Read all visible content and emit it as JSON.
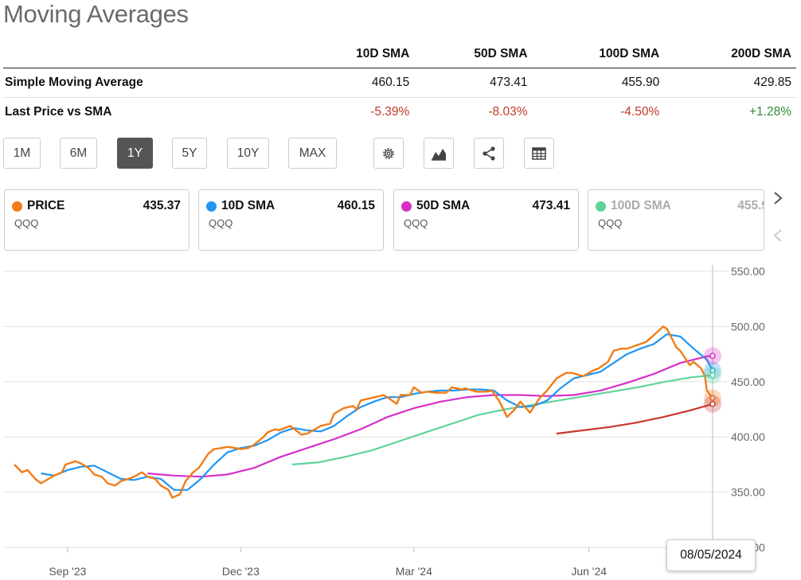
{
  "title": "Moving Averages",
  "table": {
    "headers": [
      "",
      "10D SMA",
      "50D SMA",
      "100D SMA",
      "200D SMA"
    ],
    "rows": [
      {
        "label": "Simple Moving Average",
        "values": [
          "460.15",
          "473.41",
          "455.90",
          "429.85"
        ]
      },
      {
        "label": "Last Price vs SMA",
        "values": [
          "-5.39%",
          "-8.03%",
          "-4.50%",
          "+1.28%"
        ]
      }
    ]
  },
  "ranges": [
    "1M",
    "6M",
    "1Y",
    "5Y",
    "10Y",
    "MAX"
  ],
  "active_range": "1Y",
  "tools": [
    "gear-icon",
    "chart-type-icon",
    "share-icon",
    "table-icon"
  ],
  "cards": [
    {
      "name": "PRICE",
      "value": "435.37",
      "ticker": "QQQ",
      "color": "#f07d18"
    },
    {
      "name": "10D SMA",
      "value": "460.15",
      "ticker": "QQQ",
      "color": "#2196f3"
    },
    {
      "name": "50D SMA",
      "value": "473.41",
      "ticker": "QQQ",
      "color": "#d630c8"
    },
    {
      "name": "100D SMA",
      "value": "455.9",
      "ticker": "QQQ",
      "color": "#5fd49a"
    }
  ],
  "tooltip": "08/05/2024",
  "chart_data": {
    "type": "line",
    "ylim": [
      300,
      550
    ],
    "yticks": [
      "550.00",
      "500.00",
      "450.00",
      "400.00",
      "350.00",
      "300.00"
    ],
    "xticks": [
      {
        "label": "Sep '23",
        "date": "2023-09-01"
      },
      {
        "label": "Dec '23",
        "date": "2023-12-01"
      },
      {
        "label": "Mar '24",
        "date": "2024-03-01"
      },
      {
        "label": "Jun '24",
        "date": "2024-06-01"
      }
    ],
    "x_range": [
      "2023-08-04",
      "2024-08-05"
    ],
    "series": [
      {
        "name": "PRICE",
        "color": "#f07d18",
        "points": [
          [
            "2023-08-04",
            375
          ],
          [
            "2023-08-08",
            368
          ],
          [
            "2023-08-11",
            370
          ],
          [
            "2023-08-15",
            362
          ],
          [
            "2023-08-18",
            358
          ],
          [
            "2023-08-22",
            362
          ],
          [
            "2023-08-25",
            365
          ],
          [
            "2023-08-29",
            368
          ],
          [
            "2023-08-31",
            375
          ],
          [
            "2023-09-05",
            378
          ],
          [
            "2023-09-08",
            376
          ],
          [
            "2023-09-12",
            372
          ],
          [
            "2023-09-15",
            366
          ],
          [
            "2023-09-19",
            364
          ],
          [
            "2023-09-22",
            358
          ],
          [
            "2023-09-26",
            356
          ],
          [
            "2023-09-29",
            360
          ],
          [
            "2023-10-03",
            362
          ],
          [
            "2023-10-06",
            364
          ],
          [
            "2023-10-10",
            368
          ],
          [
            "2023-10-13",
            364
          ],
          [
            "2023-10-17",
            362
          ],
          [
            "2023-10-20",
            356
          ],
          [
            "2023-10-24",
            352
          ],
          [
            "2023-10-26",
            345
          ],
          [
            "2023-10-30",
            348
          ],
          [
            "2023-11-02",
            360
          ],
          [
            "2023-11-06",
            368
          ],
          [
            "2023-11-09",
            372
          ],
          [
            "2023-11-14",
            385
          ],
          [
            "2023-11-17",
            389
          ],
          [
            "2023-11-21",
            390
          ],
          [
            "2023-11-24",
            391
          ],
          [
            "2023-11-28",
            390
          ],
          [
            "2023-12-01",
            389
          ],
          [
            "2023-12-05",
            390
          ],
          [
            "2023-12-08",
            393
          ],
          [
            "2023-12-13",
            400
          ],
          [
            "2023-12-15",
            404
          ],
          [
            "2023-12-19",
            407
          ],
          [
            "2023-12-21",
            406
          ],
          [
            "2023-12-27",
            410
          ],
          [
            "2024-01-02",
            402
          ],
          [
            "2024-01-05",
            403
          ],
          [
            "2024-01-09",
            407
          ],
          [
            "2024-01-12",
            410
          ],
          [
            "2024-01-17",
            412
          ],
          [
            "2024-01-19",
            421
          ],
          [
            "2024-01-24",
            426
          ],
          [
            "2024-01-29",
            428
          ],
          [
            "2024-01-31",
            425
          ],
          [
            "2024-02-02",
            433
          ],
          [
            "2024-02-07",
            435
          ],
          [
            "2024-02-12",
            437
          ],
          [
            "2024-02-14",
            438
          ],
          [
            "2024-02-16",
            436
          ],
          [
            "2024-02-21",
            430
          ],
          [
            "2024-02-23",
            438
          ],
          [
            "2024-02-28",
            438
          ],
          [
            "2024-03-01",
            445
          ],
          [
            "2024-03-05",
            440
          ],
          [
            "2024-03-08",
            441
          ],
          [
            "2024-03-13",
            440
          ],
          [
            "2024-03-18",
            440
          ],
          [
            "2024-03-21",
            445
          ],
          [
            "2024-03-26",
            443
          ],
          [
            "2024-03-28",
            444
          ],
          [
            "2024-04-03",
            441
          ],
          [
            "2024-04-08",
            441
          ],
          [
            "2024-04-11",
            442
          ],
          [
            "2024-04-15",
            432
          ],
          [
            "2024-04-19",
            418
          ],
          [
            "2024-04-23",
            425
          ],
          [
            "2024-04-26",
            432
          ],
          [
            "2024-05-01",
            422
          ],
          [
            "2024-05-06",
            435
          ],
          [
            "2024-05-10",
            442
          ],
          [
            "2024-05-15",
            453
          ],
          [
            "2024-05-20",
            458
          ],
          [
            "2024-05-23",
            458
          ],
          [
            "2024-05-29",
            455
          ],
          [
            "2024-06-03",
            460
          ],
          [
            "2024-06-06",
            462
          ],
          [
            "2024-06-11",
            468
          ],
          [
            "2024-06-14",
            478
          ],
          [
            "2024-06-18",
            480
          ],
          [
            "2024-06-21",
            480
          ],
          [
            "2024-06-26",
            483
          ],
          [
            "2024-07-01",
            486
          ],
          [
            "2024-07-05",
            492
          ],
          [
            "2024-07-10",
            500
          ],
          [
            "2024-07-12",
            498
          ],
          [
            "2024-07-17",
            481
          ],
          [
            "2024-07-19",
            478
          ],
          [
            "2024-07-24",
            465
          ],
          [
            "2024-07-26",
            468
          ],
          [
            "2024-07-30",
            462
          ],
          [
            "2024-08-01",
            455
          ],
          [
            "2024-08-02",
            442
          ],
          [
            "2024-08-05",
            435.37
          ]
        ]
      },
      {
        "name": "10D SMA",
        "color": "#2196f3",
        "points": [
          [
            "2023-08-18",
            367
          ],
          [
            "2023-08-25",
            365
          ],
          [
            "2023-09-01",
            370
          ],
          [
            "2023-09-08",
            373
          ],
          [
            "2023-09-15",
            374
          ],
          [
            "2023-09-22",
            368
          ],
          [
            "2023-09-29",
            362
          ],
          [
            "2023-10-06",
            361
          ],
          [
            "2023-10-13",
            364
          ],
          [
            "2023-10-20",
            362
          ],
          [
            "2023-10-27",
            352
          ],
          [
            "2023-11-03",
            352
          ],
          [
            "2023-11-10",
            362
          ],
          [
            "2023-11-17",
            375
          ],
          [
            "2023-11-24",
            386
          ],
          [
            "2023-12-01",
            390
          ],
          [
            "2023-12-08",
            392
          ],
          [
            "2023-12-15",
            397
          ],
          [
            "2023-12-22",
            404
          ],
          [
            "2023-12-29",
            408
          ],
          [
            "2024-01-05",
            406
          ],
          [
            "2024-01-12",
            405
          ],
          [
            "2024-01-19",
            410
          ],
          [
            "2024-01-26",
            419
          ],
          [
            "2024-02-02",
            427
          ],
          [
            "2024-02-09",
            432
          ],
          [
            "2024-02-16",
            436
          ],
          [
            "2024-02-23",
            436
          ],
          [
            "2024-03-01",
            439
          ],
          [
            "2024-03-08",
            441
          ],
          [
            "2024-03-15",
            442
          ],
          [
            "2024-03-22",
            442
          ],
          [
            "2024-03-29",
            443
          ],
          [
            "2024-04-05",
            443
          ],
          [
            "2024-04-12",
            442
          ],
          [
            "2024-04-19",
            433
          ],
          [
            "2024-04-26",
            427
          ],
          [
            "2024-05-03",
            428
          ],
          [
            "2024-05-10",
            433
          ],
          [
            "2024-05-17",
            444
          ],
          [
            "2024-05-24",
            453
          ],
          [
            "2024-05-31",
            456
          ],
          [
            "2024-06-07",
            459
          ],
          [
            "2024-06-14",
            467
          ],
          [
            "2024-06-21",
            475
          ],
          [
            "2024-06-28",
            480
          ],
          [
            "2024-07-05",
            484
          ],
          [
            "2024-07-12",
            493
          ],
          [
            "2024-07-19",
            491
          ],
          [
            "2024-07-26",
            480
          ],
          [
            "2024-08-02",
            470
          ],
          [
            "2024-08-05",
            460.15
          ]
        ]
      },
      {
        "name": "50D SMA",
        "color": "#d630c8",
        "points": [
          [
            "2023-10-13",
            367
          ],
          [
            "2023-10-27",
            365
          ],
          [
            "2023-11-10",
            364
          ],
          [
            "2023-11-24",
            366
          ],
          [
            "2023-12-08",
            372
          ],
          [
            "2023-12-22",
            382
          ],
          [
            "2024-01-05",
            390
          ],
          [
            "2024-01-19",
            398
          ],
          [
            "2024-02-02",
            407
          ],
          [
            "2024-02-16",
            418
          ],
          [
            "2024-03-01",
            426
          ],
          [
            "2024-03-15",
            432
          ],
          [
            "2024-03-29",
            436
          ],
          [
            "2024-04-12",
            438
          ],
          [
            "2024-04-26",
            438
          ],
          [
            "2024-05-10",
            437
          ],
          [
            "2024-05-24",
            438
          ],
          [
            "2024-06-07",
            442
          ],
          [
            "2024-06-21",
            449
          ],
          [
            "2024-07-05",
            457
          ],
          [
            "2024-07-19",
            467
          ],
          [
            "2024-08-02",
            473
          ],
          [
            "2024-08-05",
            473.41
          ]
        ]
      },
      {
        "name": "100D SMA",
        "color": "#5fd49a",
        "points": [
          [
            "2023-12-28",
            375
          ],
          [
            "2024-01-11",
            377
          ],
          [
            "2024-01-25",
            382
          ],
          [
            "2024-02-08",
            388
          ],
          [
            "2024-02-22",
            396
          ],
          [
            "2024-03-07",
            404
          ],
          [
            "2024-03-21",
            412
          ],
          [
            "2024-04-04",
            420
          ],
          [
            "2024-04-18",
            425
          ],
          [
            "2024-05-02",
            429
          ],
          [
            "2024-05-16",
            433
          ],
          [
            "2024-05-30",
            437
          ],
          [
            "2024-06-13",
            441
          ],
          [
            "2024-06-27",
            445
          ],
          [
            "2024-07-11",
            450
          ],
          [
            "2024-07-25",
            454
          ],
          [
            "2024-08-05",
            455.9
          ]
        ]
      },
      {
        "name": "200D SMA",
        "color": "#c9372c",
        "points": [
          [
            "2024-05-15",
            403
          ],
          [
            "2024-05-29",
            406
          ],
          [
            "2024-06-12",
            409
          ],
          [
            "2024-06-26",
            413
          ],
          [
            "2024-07-10",
            418
          ],
          [
            "2024-07-24",
            424
          ],
          [
            "2024-08-05",
            429.85
          ]
        ]
      }
    ]
  }
}
